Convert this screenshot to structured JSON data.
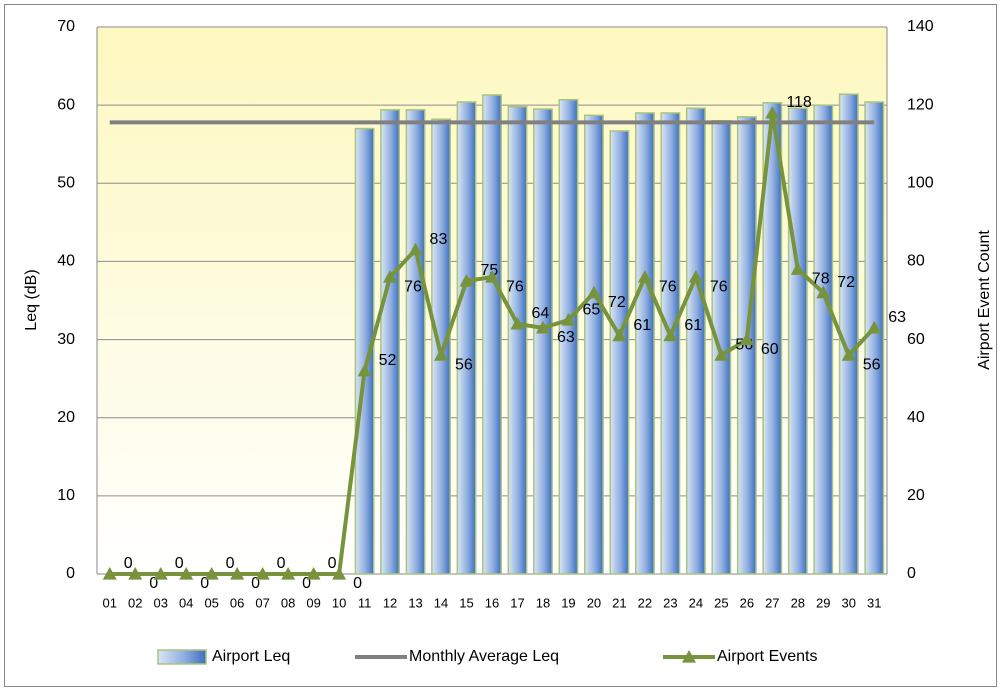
{
  "chart_data": {
    "type": "combo",
    "categories": [
      "01",
      "02",
      "03",
      "04",
      "05",
      "06",
      "07",
      "08",
      "09",
      "10",
      "11",
      "12",
      "13",
      "14",
      "15",
      "16",
      "17",
      "18",
      "19",
      "20",
      "21",
      "22",
      "23",
      "24",
      "25",
      "26",
      "27",
      "28",
      "29",
      "30",
      "31"
    ],
    "series": [
      {
        "name": "Airport Leq",
        "type": "bar",
        "color": "#4f81bd",
        "values": [
          0,
          0,
          0,
          0,
          0,
          0,
          0,
          0,
          0,
          0,
          57,
          59.4,
          59.4,
          58.2,
          60.4,
          61.3,
          59.8,
          59.5,
          60.7,
          58.7,
          56.7,
          59,
          59,
          59.6,
          58,
          58.5,
          60.3,
          59.6,
          60,
          61.4,
          60.4
        ]
      },
      {
        "name": "Monthly Average Leq",
        "type": "line",
        "color": "#808080",
        "values": [
          57.8,
          57.8,
          57.8,
          57.8,
          57.8,
          57.8,
          57.8,
          57.8,
          57.8,
          57.8,
          57.8,
          57.8,
          57.8,
          57.8,
          57.8,
          57.8,
          57.8,
          57.8,
          57.8,
          57.8,
          57.8,
          57.8,
          57.8,
          57.8,
          57.8,
          57.8,
          57.8,
          57.8,
          57.8,
          57.8,
          57.8
        ]
      },
      {
        "name": "Airport Events",
        "type": "line",
        "axis": "y2",
        "color": "#77933c",
        "markers": "triangle",
        "data_labels": true,
        "values": [
          0,
          0,
          0,
          0,
          0,
          0,
          0,
          0,
          0,
          0,
          52,
          76,
          83,
          56,
          75,
          76,
          64,
          63,
          65,
          72,
          61,
          76,
          61,
          76,
          56,
          60,
          118,
          78,
          72,
          56,
          63
        ]
      }
    ],
    "y_label": "Leq (dB)",
    "y2_label": "Airport Event Count",
    "ylim": [
      0,
      70
    ],
    "yticks": [
      0,
      10,
      20,
      30,
      40,
      50,
      60,
      70
    ],
    "y2lim": [
      0,
      140
    ],
    "y2ticks": [
      0,
      20,
      40,
      60,
      80,
      100,
      120,
      140
    ],
    "grid": true,
    "legend": "bottom"
  }
}
